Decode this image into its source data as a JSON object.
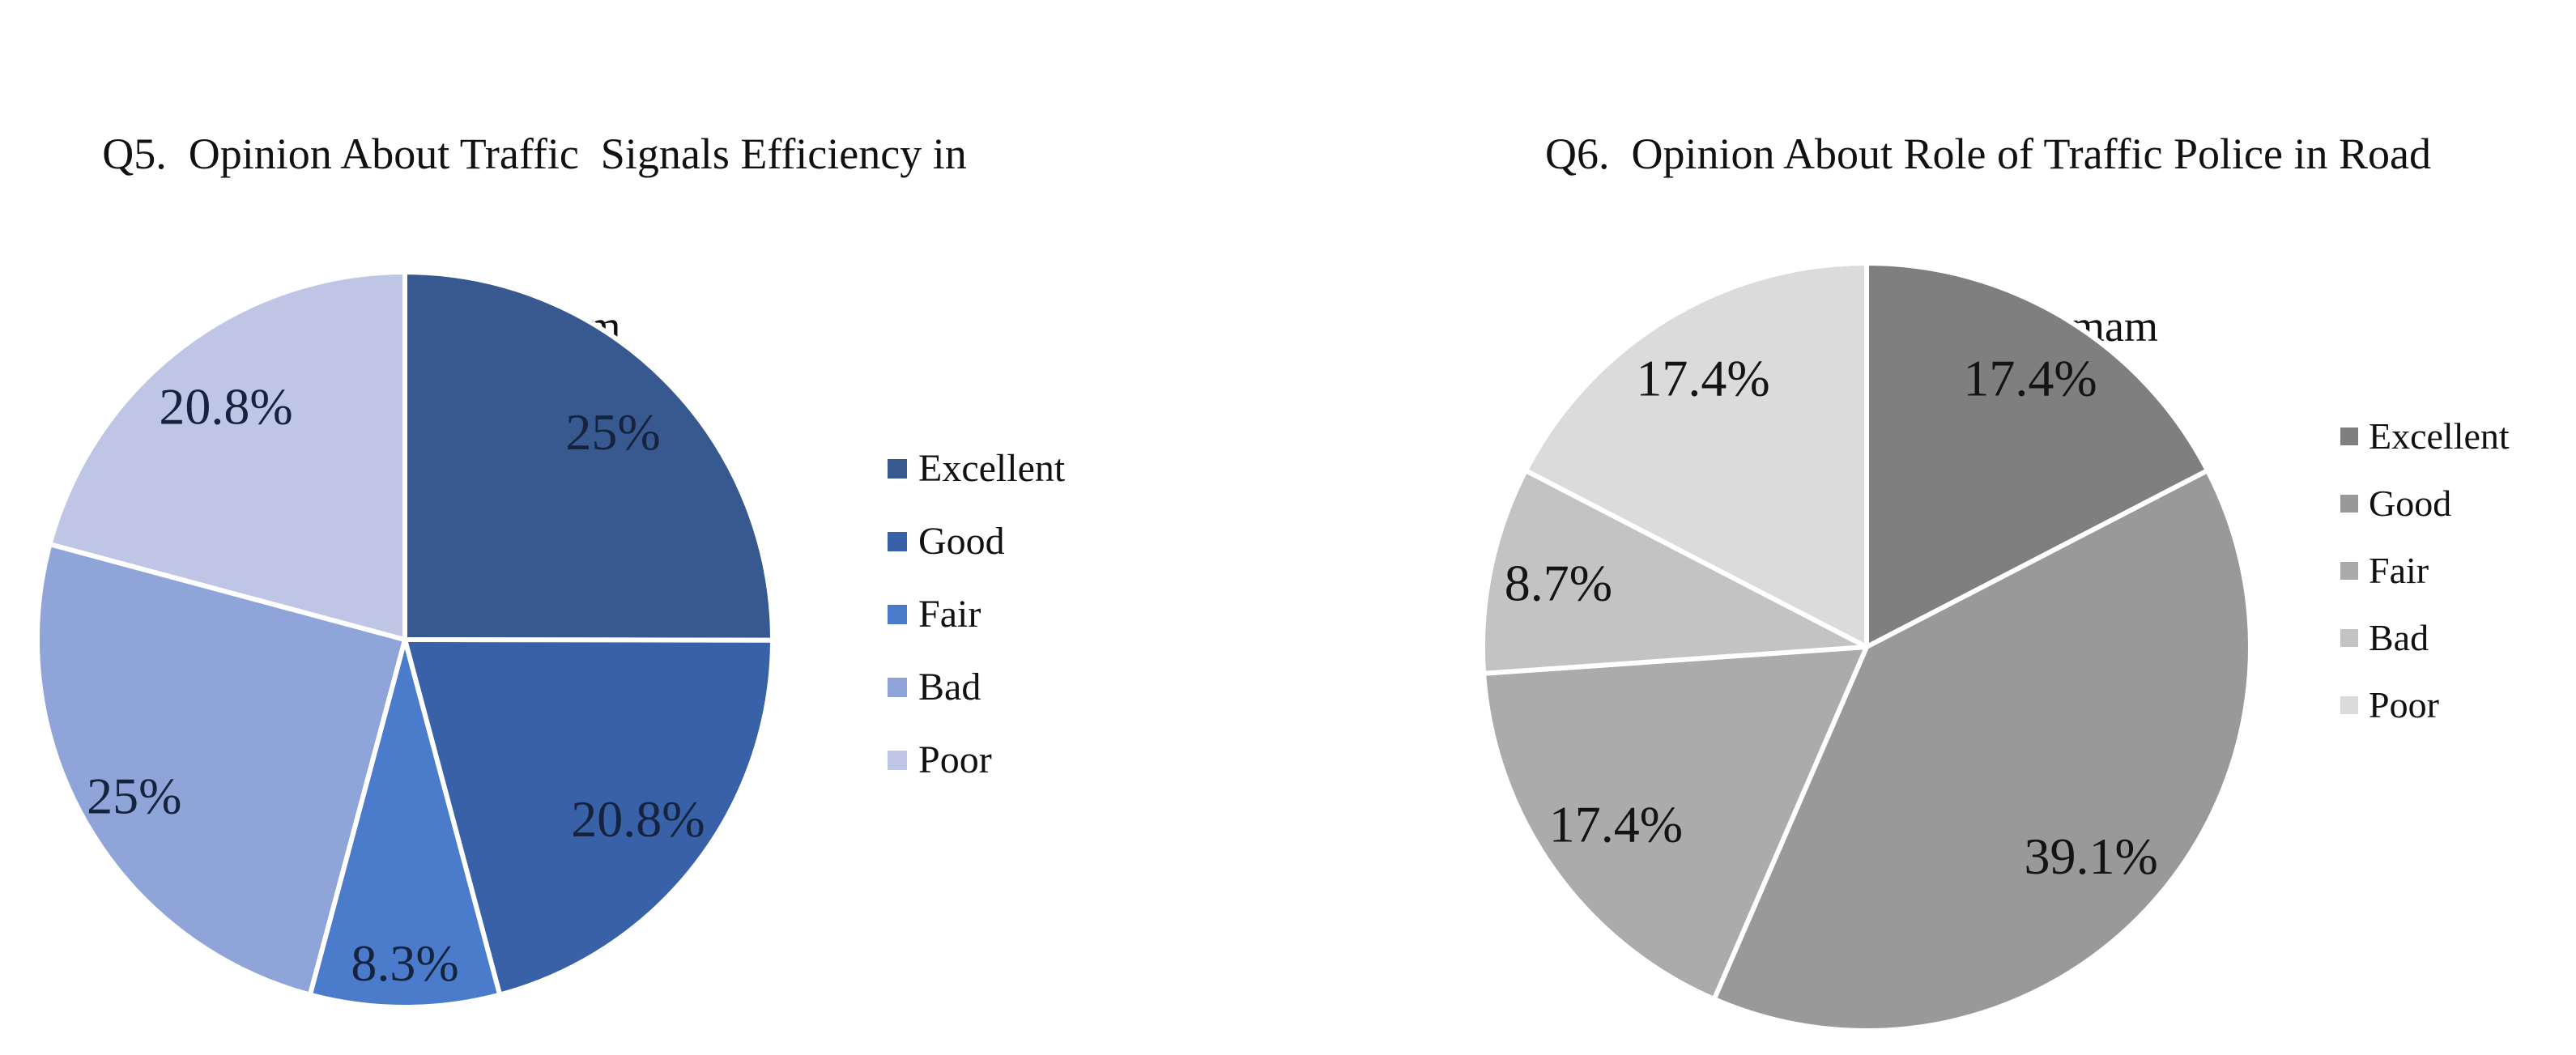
{
  "page": {
    "background": "#FFFFFF"
  },
  "chart_data": [
    {
      "type": "pie",
      "title": "Q5. Opinion About Traffic Signals Efficiency in Dammam",
      "title_lines": [
        "Q5.  Opinion About Traffic  Signals Efficiency in",
        "Dammam"
      ],
      "categories": [
        "Excellent",
        "Good",
        "Fair",
        "Bad",
        "Poor"
      ],
      "values": [
        25,
        20.8,
        8.3,
        25,
        20.8
      ],
      "slice_labels": [
        "25%",
        "20.8%",
        "8.3%",
        "25%",
        "20.8%"
      ],
      "colors": [
        "#38598F",
        "#3861A8",
        "#4A7CCB",
        "#8FA4D8",
        "#BFC5E4"
      ],
      "slice_border_color": "#FFFFFF",
      "label_color": "#16233E",
      "legend_position": "right",
      "start_angle_deg": 0,
      "direction": "clockwise"
    },
    {
      "type": "pie",
      "title": "Q6. Opinion About Role of Traffic Police in Road Safety in Dammam",
      "title_lines": [
        "Q6.  Opinion About Role of Traffic Police in Road",
        "Safety in Dammam"
      ],
      "categories": [
        "Excellent",
        "Good",
        "Fair",
        "Bad",
        "Poor"
      ],
      "values": [
        17.4,
        39.1,
        17.4,
        8.7,
        17.4
      ],
      "slice_labels": [
        "17.4%",
        "39.1%",
        "17.4%",
        "8.7%",
        "17.4%"
      ],
      "colors": [
        "#7F7F7F",
        "#999999",
        "#ABABAB",
        "#C3C3C3",
        "#DBDBDB"
      ],
      "slice_border_color": "#FFFFFF",
      "label_color": "#141414",
      "legend_position": "right",
      "start_angle_deg": 0,
      "direction": "clockwise"
    }
  ]
}
